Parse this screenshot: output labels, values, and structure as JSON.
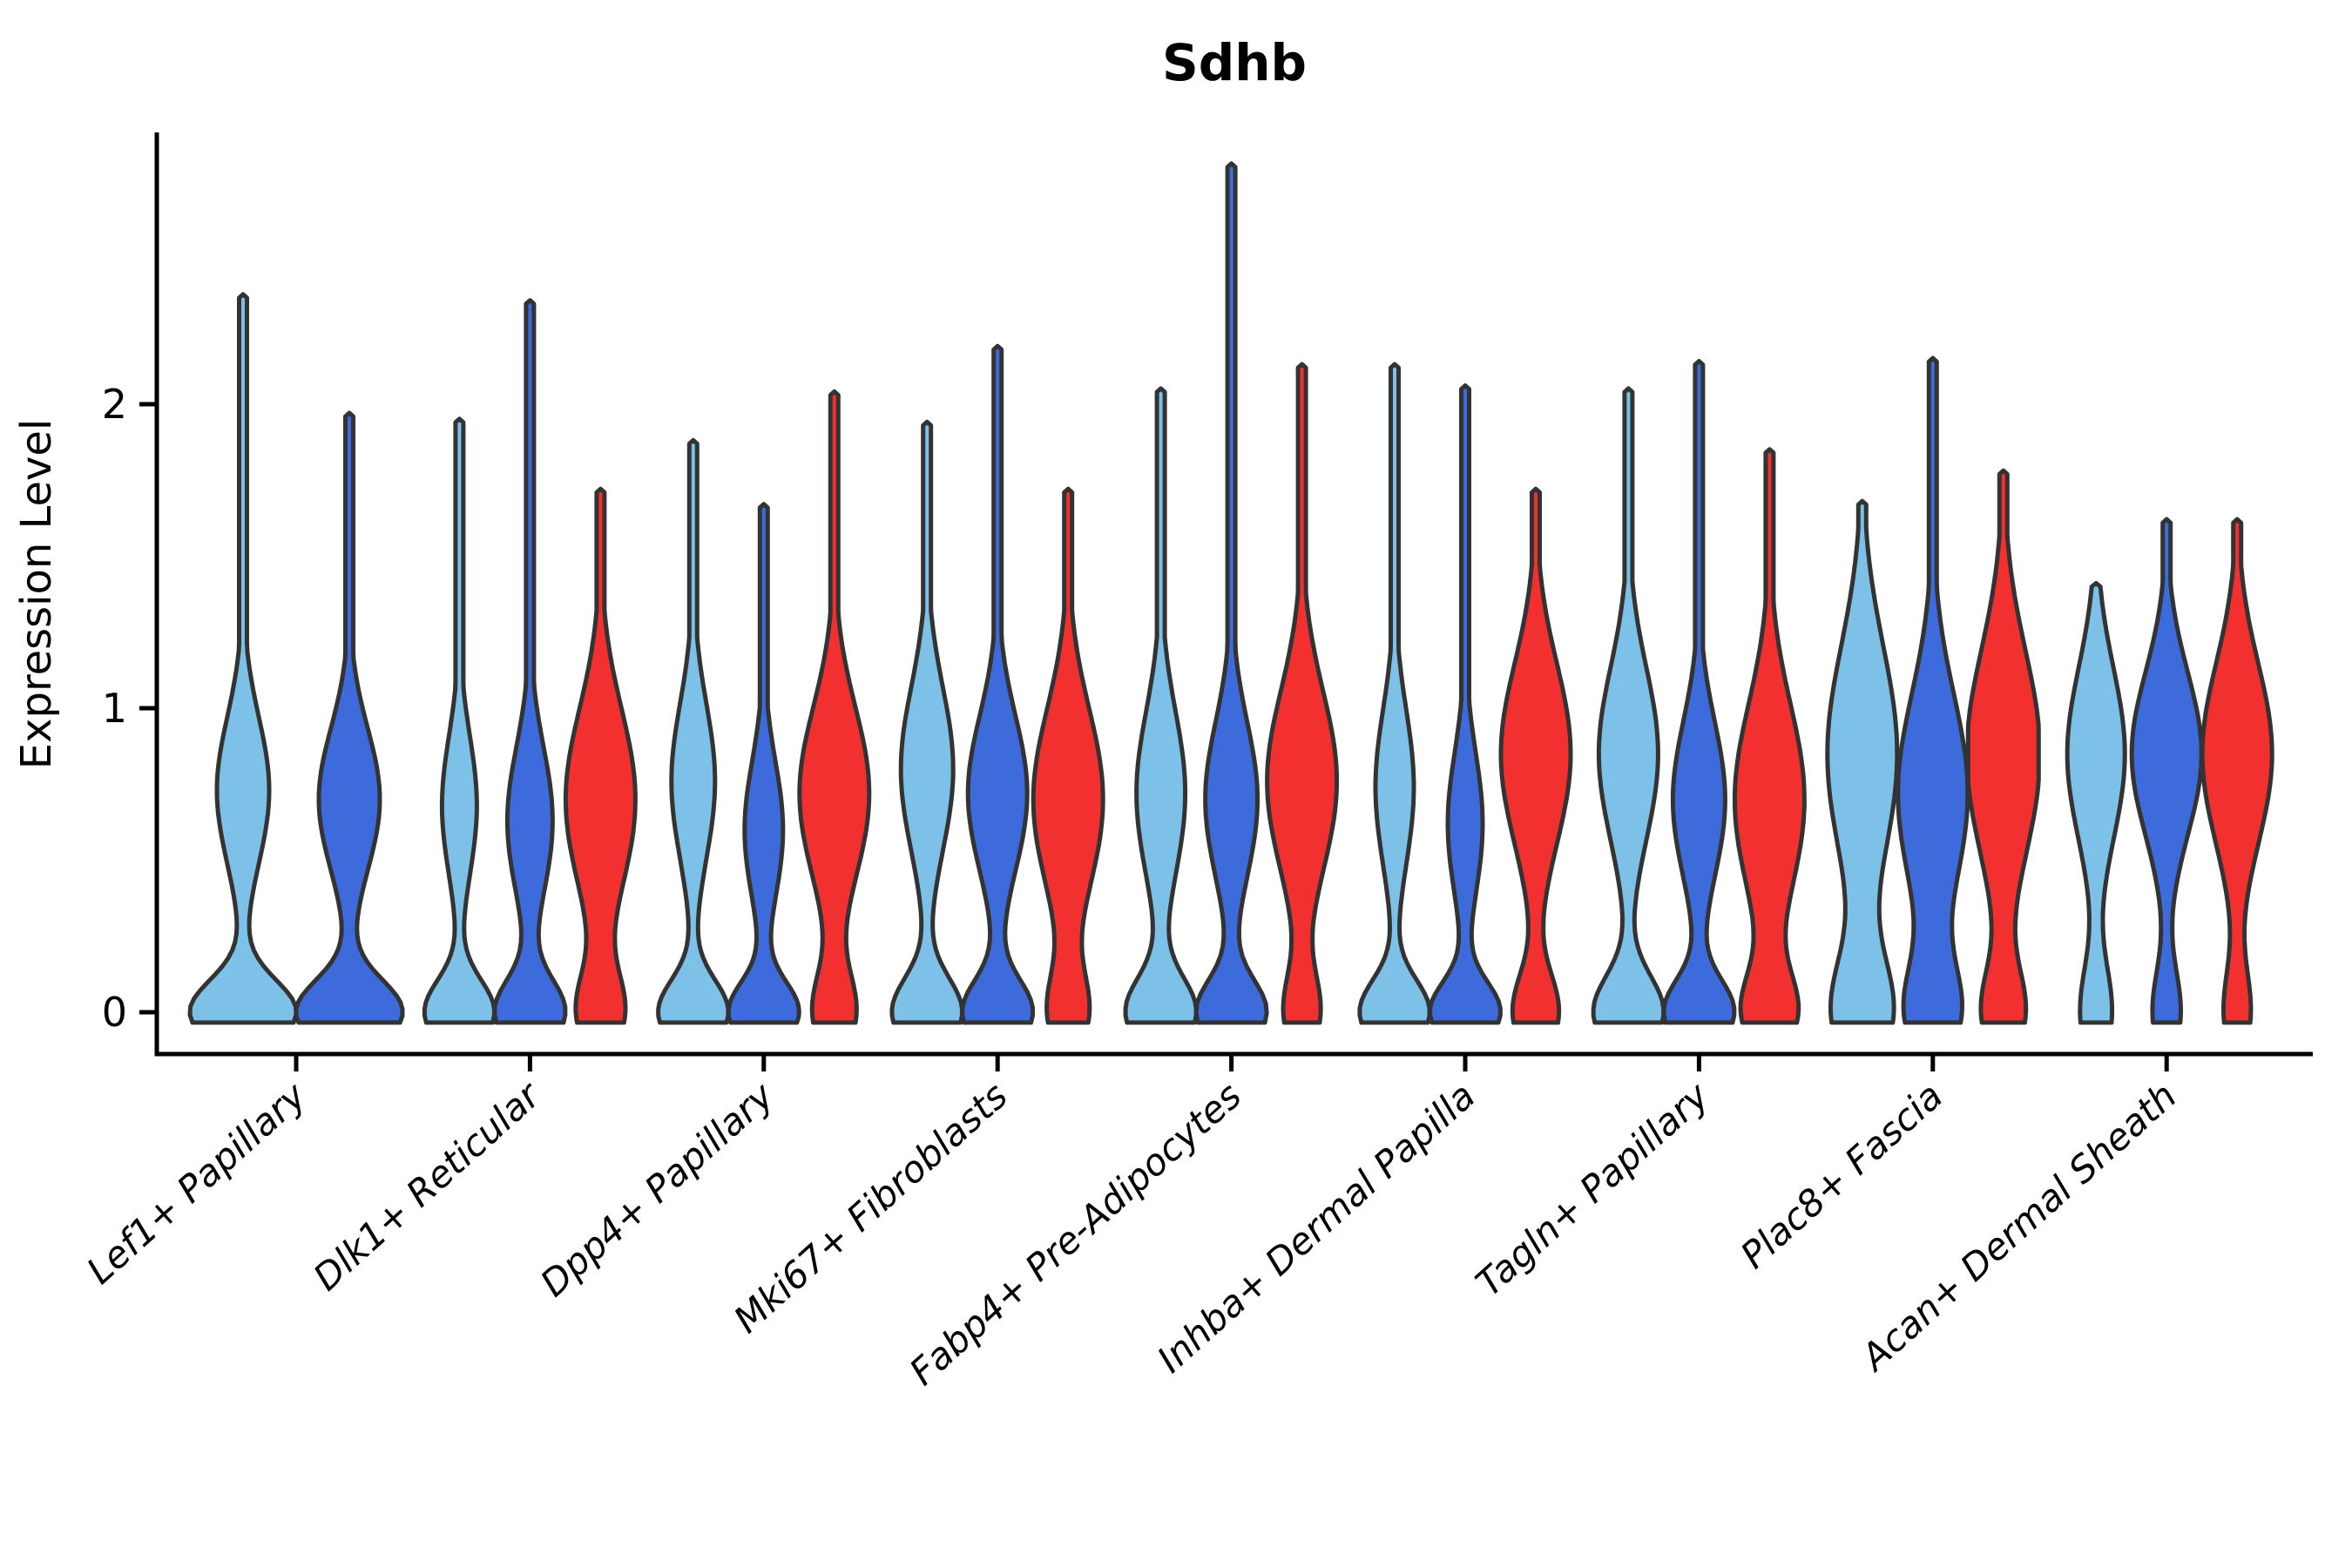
{
  "title": "Sdhb",
  "y_axis": {
    "label": "Expression Level",
    "ticks": [
      "0",
      "1",
      "2"
    ]
  },
  "colors": {
    "light_blue": "#7DC1E8",
    "dark_blue": "#3D6BDC",
    "red": "#F23030",
    "outline": "#333333",
    "axis": "#000000",
    "text": "#000000"
  },
  "chart_data": {
    "type": "violin",
    "title": "Sdhb",
    "xlabel": "",
    "ylabel": "Expression Level",
    "yticks": [
      0,
      1,
      2
    ],
    "ylim": [
      -0.05,
      2.9
    ],
    "grid": false,
    "legend": "none",
    "splits": [
      "light_blue",
      "dark_blue",
      "red"
    ],
    "groups": [
      {
        "label": "Lef1+ Papillary",
        "violins": [
          {
            "split": "light_blue",
            "max": 2.35,
            "base": 61,
            "s0": 0.15,
            "bulge": 30,
            "bc": 0.73,
            "s1": 0.34
          },
          {
            "split": "dark_blue",
            "max": 1.96,
            "base": 61,
            "s0": 0.15,
            "bulge": 35,
            "bc": 0.7,
            "s1": 0.33
          }
        ]
      },
      {
        "label": "Dlk1+ Reticular",
        "violins": [
          {
            "split": "light_blue",
            "max": 1.94,
            "base": 40,
            "s0": 0.15,
            "bulge": 20,
            "bc": 0.68,
            "s1": 0.32
          },
          {
            "split": "dark_blue",
            "max": 2.33,
            "base": 40,
            "s0": 0.15,
            "bulge": 26,
            "bc": 0.63,
            "s1": 0.34
          },
          {
            "split": "red",
            "max": 1.71,
            "base": 26,
            "s0": 0.18,
            "bulge": 40,
            "bc": 0.7,
            "s1": 0.42
          }
        ]
      },
      {
        "label": "Dpp4+ Papillary",
        "violins": [
          {
            "split": "light_blue",
            "max": 1.87,
            "base": 40,
            "s0": 0.15,
            "bulge": 25,
            "bc": 0.76,
            "s1": 0.36
          },
          {
            "split": "dark_blue",
            "max": 1.66,
            "base": 40,
            "s0": 0.14,
            "bulge": 22,
            "bc": 0.6,
            "s1": 0.32
          },
          {
            "split": "red",
            "max": 2.03,
            "base": 24,
            "s0": 0.18,
            "bulge": 40,
            "bc": 0.72,
            "s1": 0.4
          }
        ]
      },
      {
        "label": "Mki67+ Fibroblasts",
        "violins": [
          {
            "split": "light_blue",
            "max": 1.93,
            "base": 40,
            "s0": 0.16,
            "bulge": 30,
            "bc": 0.8,
            "s1": 0.38
          },
          {
            "split": "dark_blue",
            "max": 2.18,
            "base": 40,
            "s0": 0.15,
            "bulge": 34,
            "bc": 0.72,
            "s1": 0.36
          },
          {
            "split": "red",
            "max": 1.71,
            "base": 22,
            "s0": 0.18,
            "bulge": 40,
            "bc": 0.7,
            "s1": 0.42
          }
        ]
      },
      {
        "label": "Fabp4+ Pre-Adipocytes",
        "violins": [
          {
            "split": "light_blue",
            "max": 2.04,
            "base": 40,
            "s0": 0.16,
            "bulge": 28,
            "bc": 0.72,
            "s1": 0.38
          },
          {
            "split": "dark_blue",
            "max": 2.78,
            "base": 40,
            "s0": 0.15,
            "bulge": 30,
            "bc": 0.7,
            "s1": 0.36
          },
          {
            "split": "red",
            "max": 2.12,
            "base": 20,
            "s0": 0.18,
            "bulge": 40,
            "bc": 0.76,
            "s1": 0.42
          }
        ]
      },
      {
        "label": "Inhba+ Dermal Papilla",
        "violins": [
          {
            "split": "light_blue",
            "max": 2.12,
            "base": 40,
            "s0": 0.15,
            "bulge": 22,
            "bc": 0.74,
            "s1": 0.36
          },
          {
            "split": "dark_blue",
            "max": 2.05,
            "base": 40,
            "s0": 0.14,
            "bulge": 20,
            "bc": 0.62,
            "s1": 0.33
          },
          {
            "split": "red",
            "max": 1.71,
            "base": 26,
            "s0": 0.18,
            "bulge": 40,
            "bc": 0.85,
            "s1": 0.42
          }
        ]
      },
      {
        "label": "Tagln+ Papillary",
        "violins": [
          {
            "split": "light_blue",
            "max": 2.04,
            "base": 40,
            "s0": 0.17,
            "bulge": 34,
            "bc": 0.85,
            "s1": 0.4
          },
          {
            "split": "dark_blue",
            "max": 2.13,
            "base": 40,
            "s0": 0.15,
            "bulge": 30,
            "bc": 0.7,
            "s1": 0.36
          },
          {
            "split": "red",
            "max": 1.84,
            "base": 30,
            "s0": 0.18,
            "bulge": 40,
            "bc": 0.7,
            "s1": 0.44
          }
        ]
      },
      {
        "label": "Plac8+ Fascia",
        "violins": [
          {
            "split": "light_blue",
            "max": 1.67,
            "base": 34,
            "s0": 0.25,
            "bulge": 40,
            "bc": 0.85,
            "s1": 0.5
          },
          {
            "split": "dark_blue",
            "max": 2.14,
            "base": 30,
            "s0": 0.22,
            "bulge": 40,
            "bc": 0.72,
            "s1": 0.46
          },
          {
            "split": "red",
            "max": 1.77,
            "base": 24,
            "s0": 0.2,
            "bulge": 42,
            "bc": 0.85,
            "s1": 0.48
          }
        ]
      },
      {
        "label": "Acan+ Dermal Sheath",
        "violins": [
          {
            "split": "light_blue",
            "max": 1.4,
            "base": 18,
            "s0": 0.22,
            "bulge": 33,
            "bc": 0.85,
            "s1": 0.4
          },
          {
            "split": "dark_blue",
            "max": 1.61,
            "base": 16,
            "s0": 0.2,
            "bulge": 40,
            "bc": 0.85,
            "s1": 0.38
          },
          {
            "split": "red",
            "max": 1.61,
            "base": 15,
            "s0": 0.2,
            "bulge": 40,
            "bc": 0.85,
            "s1": 0.42
          }
        ]
      }
    ]
  }
}
